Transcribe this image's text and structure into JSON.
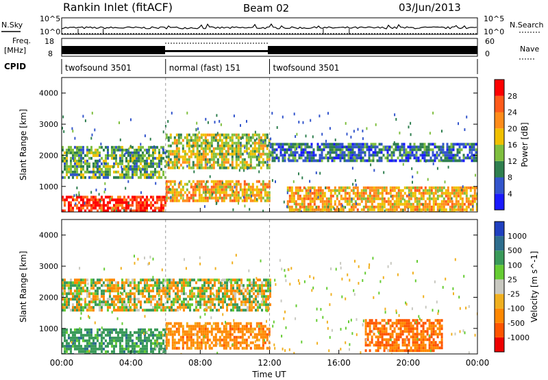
{
  "header": {
    "station": "Rankin Inlet (fitACF)",
    "beam": "Beam 02",
    "date": "03/Jun/2013"
  },
  "side_labels": {
    "nsky": "N.Sky",
    "freq_line1": "Freq.",
    "freq_line2": "[MHz]",
    "cpid": "CPID",
    "nsearch": "N.Search",
    "nave": "Nave"
  },
  "noise_panel": {
    "left_ticks": [
      "10^5",
      "10^0"
    ],
    "right_ticks": [
      "10^5",
      "10^0"
    ]
  },
  "freq_panel": {
    "left_ticks": [
      "18",
      "8"
    ],
    "right_ticks": [
      "60",
      "0"
    ]
  },
  "cpid_segments": [
    {
      "label": "twofsound 3501",
      "start_hour": 0,
      "end_hour": 6
    },
    {
      "label": "normal (fast) 151",
      "start_hour": 6,
      "end_hour": 12
    },
    {
      "label": "twofsound 3501",
      "start_hour": 12,
      "end_hour": 24
    }
  ],
  "chart_data": [
    {
      "type": "heatmap",
      "name": "power",
      "xlabel": "",
      "ylabel": "Slant Range [km]",
      "xlim": [
        0,
        24
      ],
      "ylim": [
        180,
        4500
      ],
      "y_ticks": [
        1000,
        2000,
        3000,
        4000
      ],
      "colorbar": {
        "label": "Power [dB]",
        "ticks": [
          4,
          8,
          12,
          16,
          20,
          24,
          28
        ],
        "colors": [
          "#1a1aff",
          "#3355cc",
          "#2f7f4f",
          "#7fbf3f",
          "#f0c000",
          "#ff8c1a",
          "#ff5a1a",
          "#ff0000"
        ]
      },
      "echo_regions": [
        {
          "t_start": 0.0,
          "t_end": 6.0,
          "range_start": 1300,
          "range_end": 2300,
          "dominant_value": 12
        },
        {
          "t_start": 0.0,
          "t_end": 6.0,
          "range_start": 180,
          "range_end": 700,
          "dominant_value": 28
        },
        {
          "t_start": 6.0,
          "t_end": 12.0,
          "range_start": 1600,
          "range_end": 2700,
          "dominant_value": 16
        },
        {
          "t_start": 6.0,
          "t_end": 12.0,
          "range_start": 500,
          "range_end": 1200,
          "dominant_value": 20
        },
        {
          "t_start": 12.0,
          "t_end": 24.0,
          "range_start": 1800,
          "range_end": 2400,
          "dominant_value": 8
        },
        {
          "t_start": 13.0,
          "t_end": 24.0,
          "range_start": 200,
          "range_end": 1000,
          "dominant_value": 20
        }
      ]
    },
    {
      "type": "heatmap",
      "name": "velocity",
      "xlabel": "Time UT",
      "ylabel": "Slant Range [km]",
      "xlim": [
        0,
        24
      ],
      "ylim": [
        180,
        4500
      ],
      "y_ticks": [
        1000,
        2000,
        3000,
        4000
      ],
      "x_ticks": [
        "00:00",
        "04:00",
        "08:00",
        "12:00",
        "16:00",
        "20:00",
        "00:00"
      ],
      "colorbar": {
        "label": "Velocity [m s^-1]",
        "ticks": [
          1000,
          500,
          100,
          25,
          -25,
          -100,
          -500,
          -1000
        ],
        "colors": [
          "#2040c0",
          "#2e6e8e",
          "#3a9a5a",
          "#66cc33",
          "#c8c8c0",
          "#f0b020",
          "#ff8800",
          "#ff5500",
          "#ee0000"
        ]
      },
      "echo_regions": [
        {
          "t_start": 0.0,
          "t_end": 12.0,
          "range_start": 1600,
          "range_end": 2600,
          "dominant_value": 0
        },
        {
          "t_start": 0.0,
          "t_end": 6.0,
          "range_start": 180,
          "range_end": 1000,
          "dominant_value": 300
        },
        {
          "t_start": 6.0,
          "t_end": 12.0,
          "range_start": 400,
          "range_end": 1200,
          "dominant_value": -300
        },
        {
          "t_start": 17.5,
          "t_end": 22.0,
          "range_start": 300,
          "range_end": 1300,
          "dominant_value": -500
        }
      ]
    }
  ]
}
